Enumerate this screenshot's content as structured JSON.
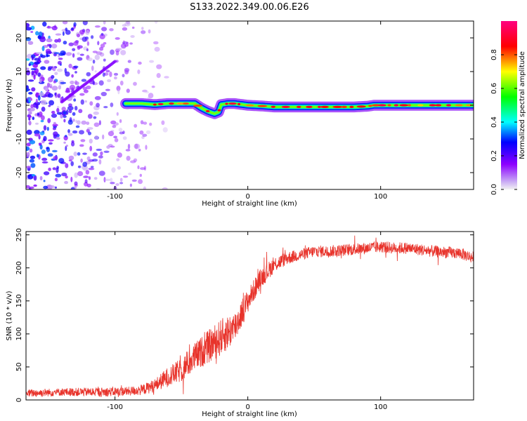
{
  "figure": {
    "title": "S133.2022.349.00.06.E26"
  },
  "chart_data": [
    {
      "type": "heatmap",
      "title": "S133.2022.349.00.06.E26",
      "xlabel": "Height of straight line (km)",
      "ylabel": "Frequency (Hz)",
      "xlim": [
        -167,
        170
      ],
      "ylim": [
        -25,
        25
      ],
      "xticks": [
        -100,
        0,
        100
      ],
      "yticks": [
        -20,
        -10,
        0,
        10,
        20
      ],
      "xtick_labels": [
        "-100",
        "0",
        "100"
      ],
      "ytick_labels": [
        "-20",
        "-10",
        "0",
        "10",
        "20"
      ],
      "colorbar": {
        "label": "Normalized spectral amplitude",
        "range": [
          0,
          1
        ],
        "ticks": [
          0.0,
          0.2,
          0.4,
          0.6,
          0.8
        ],
        "tick_labels": [
          "0.0",
          "0.2",
          "0.4",
          "0.6",
          "0.8"
        ],
        "colormap": "gist_rainbow_r",
        "colors": [
          "#f2f2f2",
          "#8c00ff",
          "#0000ff",
          "#00ffff",
          "#00ff00",
          "#ffff00",
          "#ff0000",
          "#ff0080"
        ]
      },
      "ridge": {
        "x": [
          -90,
          -80,
          -70,
          -60,
          -50,
          -40,
          -35,
          -30,
          -25,
          -22,
          -20,
          -15,
          -10,
          0,
          10,
          20,
          40,
          60,
          80,
          90,
          95,
          120,
          140,
          170
        ],
        "y": [
          0.5,
          0.5,
          0.2,
          0.5,
          0.5,
          0.5,
          -0.8,
          -1.8,
          -2.5,
          -2.0,
          0.2,
          0.5,
          0.5,
          0.0,
          -0.2,
          -0.5,
          -0.5,
          -0.5,
          -0.5,
          -0.3,
          0.0,
          0.0,
          0.0,
          0.0
        ]
      },
      "noise_region": {
        "x_range": [
          -167,
          -60
        ],
        "amplitude": 0.25,
        "streak_start": [
          -140,
          1
        ],
        "streak_end": [
          -100,
          13
        ]
      }
    },
    {
      "type": "line",
      "xlabel": "Height of straight line (km)",
      "ylabel": "SNR (10 * v/v)",
      "xlim": [
        -167,
        170
      ],
      "ylim": [
        0,
        255
      ],
      "xticks": [
        -100,
        0,
        100
      ],
      "yticks": [
        0,
        50,
        100,
        150,
        200,
        250
      ],
      "xtick_labels": [
        "-100",
        "0",
        "100"
      ],
      "ytick_labels": [
        "0",
        "50",
        "100",
        "150",
        "200",
        "250"
      ],
      "color": "#e8332b",
      "series": [
        {
          "name": "SNR",
          "x": [
            -167,
            -140,
            -110,
            -90,
            -80,
            -70,
            -60,
            -50,
            -40,
            -30,
            -20,
            -10,
            0,
            10,
            20,
            30,
            40,
            50,
            60,
            80,
            100,
            110,
            120,
            140,
            160,
            170
          ],
          "y": [
            10,
            12,
            12,
            13,
            15,
            22,
            35,
            45,
            65,
            80,
            95,
            110,
            150,
            185,
            205,
            215,
            220,
            225,
            225,
            228,
            232,
            230,
            230,
            225,
            222,
            215
          ],
          "noise": [
            6,
            6,
            7,
            7,
            8,
            10,
            15,
            18,
            22,
            25,
            28,
            25,
            18,
            15,
            12,
            10,
            9,
            9,
            9,
            9,
            9,
            9,
            9,
            9,
            9,
            9
          ]
        }
      ]
    }
  ]
}
